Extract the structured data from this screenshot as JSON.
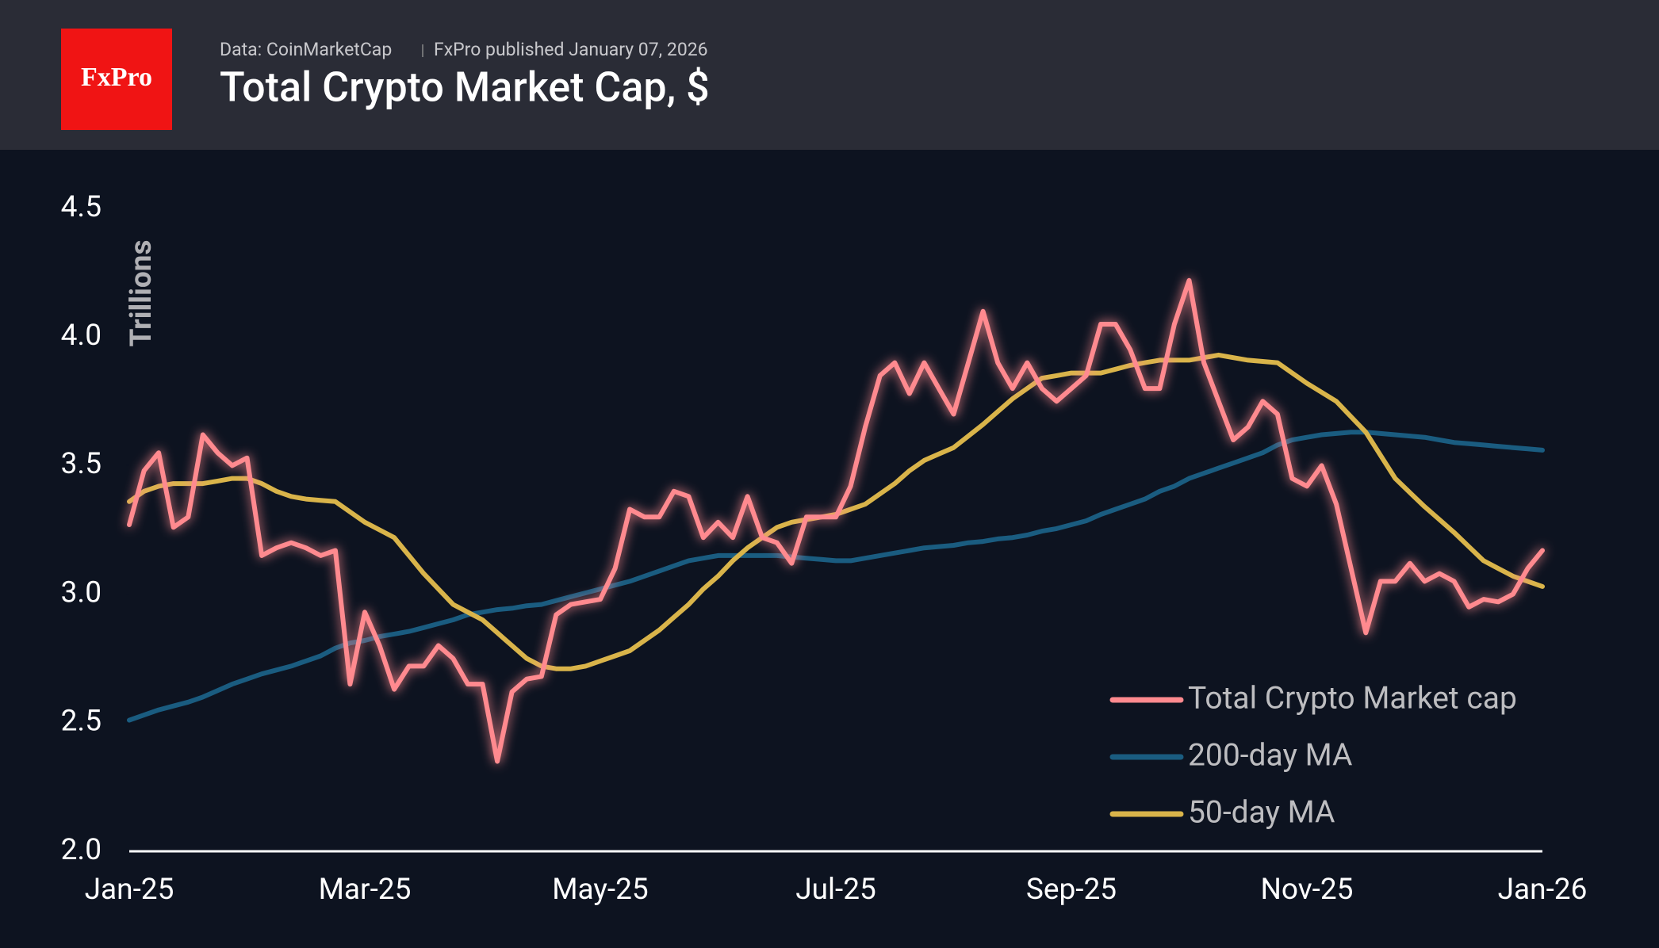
{
  "header": {
    "source": "Data: CoinMarketCap",
    "published": "FxPro published January 07, 2026",
    "logo": "FxPro"
  },
  "chart_data": {
    "type": "line",
    "title": "Total Crypto Market Cap, $",
    "ylabel": "Trillions",
    "x": [
      0,
      0.125,
      0.25,
      0.375,
      0.5,
      0.625,
      0.75,
      0.875,
      1,
      1.125,
      1.25,
      1.375,
      1.5,
      1.625,
      1.75,
      1.875,
      2,
      2.125,
      2.25,
      2.375,
      2.5,
      2.625,
      2.75,
      2.875,
      3,
      3.125,
      3.25,
      3.375,
      3.5,
      3.625,
      3.75,
      3.875,
      4,
      4.125,
      4.25,
      4.375,
      4.5,
      4.625,
      4.75,
      4.875,
      5,
      5.125,
      5.25,
      5.375,
      5.5,
      5.625,
      5.75,
      5.875,
      6,
      6.125,
      6.25,
      6.375,
      6.5,
      6.625,
      6.75,
      6.875,
      7,
      7.125,
      7.25,
      7.375,
      7.5,
      7.625,
      7.75,
      7.875,
      8,
      8.125,
      8.25,
      8.375,
      8.5,
      8.625,
      8.75,
      8.875,
      9,
      9.125,
      9.25,
      9.375,
      9.5,
      9.625,
      9.75,
      9.875,
      10,
      10.125,
      10.25,
      10.375,
      10.5,
      10.625,
      10.75,
      10.875,
      11,
      11.125,
      11.25,
      11.375,
      11.5,
      11.625,
      11.75,
      11.875,
      12
    ],
    "xlim": [
      0,
      12
    ],
    "xticks": [
      {
        "value": 0,
        "label": "Jan-25"
      },
      {
        "value": 2,
        "label": "Mar-25"
      },
      {
        "value": 4,
        "label": "May-25"
      },
      {
        "value": 6,
        "label": "Jul-25"
      },
      {
        "value": 8,
        "label": "Sep-25"
      },
      {
        "value": 10,
        "label": "Nov-25"
      },
      {
        "value": 12,
        "label": "Jan-26"
      }
    ],
    "ylim": [
      2,
      4.5
    ],
    "yticks": [
      {
        "value": 2,
        "label": "2.0"
      },
      2.5,
      {
        "value": 3,
        "label": "3.0"
      },
      3.5,
      {
        "value": 4,
        "label": "4.0"
      },
      4.5
    ],
    "legend": "lower right",
    "glow": true,
    "series": [
      {
        "name": "Total Crypto Market cap",
        "color": "#ff8a8f",
        "values": [
          3.27,
          3.48,
          3.55,
          3.26,
          3.3,
          3.62,
          3.55,
          3.5,
          3.53,
          3.15,
          3.18,
          3.2,
          3.18,
          3.15,
          3.17,
          2.65,
          2.93,
          2.8,
          2.63,
          2.72,
          2.72,
          2.8,
          2.75,
          2.65,
          2.65,
          2.35,
          2.62,
          2.67,
          2.68,
          2.92,
          2.96,
          2.97,
          2.98,
          3.1,
          3.33,
          3.3,
          3.3,
          3.4,
          3.38,
          3.22,
          3.28,
          3.22,
          3.38,
          3.22,
          3.2,
          3.12,
          3.3,
          3.3,
          3.3,
          3.42,
          3.65,
          3.85,
          3.9,
          3.78,
          3.9,
          3.8,
          3.7,
          3.9,
          4.1,
          3.9,
          3.8,
          3.9,
          3.8,
          3.75,
          3.8,
          3.85,
          4.05,
          4.05,
          3.95,
          3.8,
          3.8,
          4.05,
          4.22,
          3.9,
          3.75,
          3.6,
          3.65,
          3.75,
          3.7,
          3.45,
          3.42,
          3.5,
          3.35,
          3.1,
          2.85,
          3.05,
          3.05,
          3.12,
          3.05,
          3.08,
          3.05,
          2.95,
          2.98,
          2.97,
          3.0,
          3.1,
          3.17
        ]
      },
      {
        "name": "200-day MA",
        "color": "#1a5c80",
        "values": [
          2.51,
          2.53,
          2.55,
          2.565,
          2.58,
          2.6,
          2.625,
          2.65,
          2.67,
          2.69,
          2.705,
          2.72,
          2.74,
          2.76,
          2.79,
          2.81,
          2.82,
          2.835,
          2.845,
          2.855,
          2.87,
          2.885,
          2.9,
          2.92,
          2.93,
          2.94,
          2.945,
          2.955,
          2.96,
          2.975,
          2.99,
          3.005,
          3.02,
          3.035,
          3.05,
          3.07,
          3.09,
          3.11,
          3.13,
          3.14,
          3.15,
          3.15,
          3.15,
          3.15,
          3.15,
          3.145,
          3.14,
          3.135,
          3.13,
          3.13,
          3.14,
          3.15,
          3.16,
          3.17,
          3.18,
          3.185,
          3.19,
          3.2,
          3.205,
          3.215,
          3.22,
          3.23,
          3.245,
          3.255,
          3.27,
          3.285,
          3.31,
          3.33,
          3.35,
          3.37,
          3.4,
          3.42,
          3.45,
          3.47,
          3.49,
          3.51,
          3.53,
          3.55,
          3.58,
          3.6,
          3.61,
          3.62,
          3.625,
          3.63,
          3.63,
          3.625,
          3.62,
          3.615,
          3.61,
          3.6,
          3.59,
          3.585,
          3.58,
          3.575,
          3.57,
          3.565,
          3.56
        ]
      },
      {
        "name": "50-day MA",
        "color": "#d9b44a",
        "values": [
          3.36,
          3.4,
          3.42,
          3.43,
          3.43,
          3.43,
          3.44,
          3.45,
          3.45,
          3.43,
          3.4,
          3.38,
          3.37,
          3.365,
          3.36,
          3.32,
          3.28,
          3.25,
          3.22,
          3.15,
          3.08,
          3.02,
          2.96,
          2.93,
          2.9,
          2.85,
          2.8,
          2.75,
          2.72,
          2.71,
          2.71,
          2.72,
          2.74,
          2.76,
          2.78,
          2.82,
          2.86,
          2.91,
          2.96,
          3.02,
          3.07,
          3.13,
          3.18,
          3.22,
          3.26,
          3.28,
          3.29,
          3.3,
          3.31,
          3.33,
          3.35,
          3.39,
          3.43,
          3.48,
          3.52,
          3.545,
          3.57,
          3.615,
          3.66,
          3.71,
          3.76,
          3.8,
          3.84,
          3.85,
          3.86,
          3.86,
          3.86,
          3.875,
          3.89,
          3.9,
          3.91,
          3.91,
          3.91,
          3.92,
          3.93,
          3.92,
          3.91,
          3.905,
          3.9,
          3.86,
          3.82,
          3.785,
          3.75,
          3.69,
          3.63,
          3.54,
          3.45,
          3.395,
          3.34,
          3.29,
          3.24,
          3.185,
          3.13,
          3.1,
          3.07,
          3.05,
          3.03
        ]
      }
    ]
  }
}
